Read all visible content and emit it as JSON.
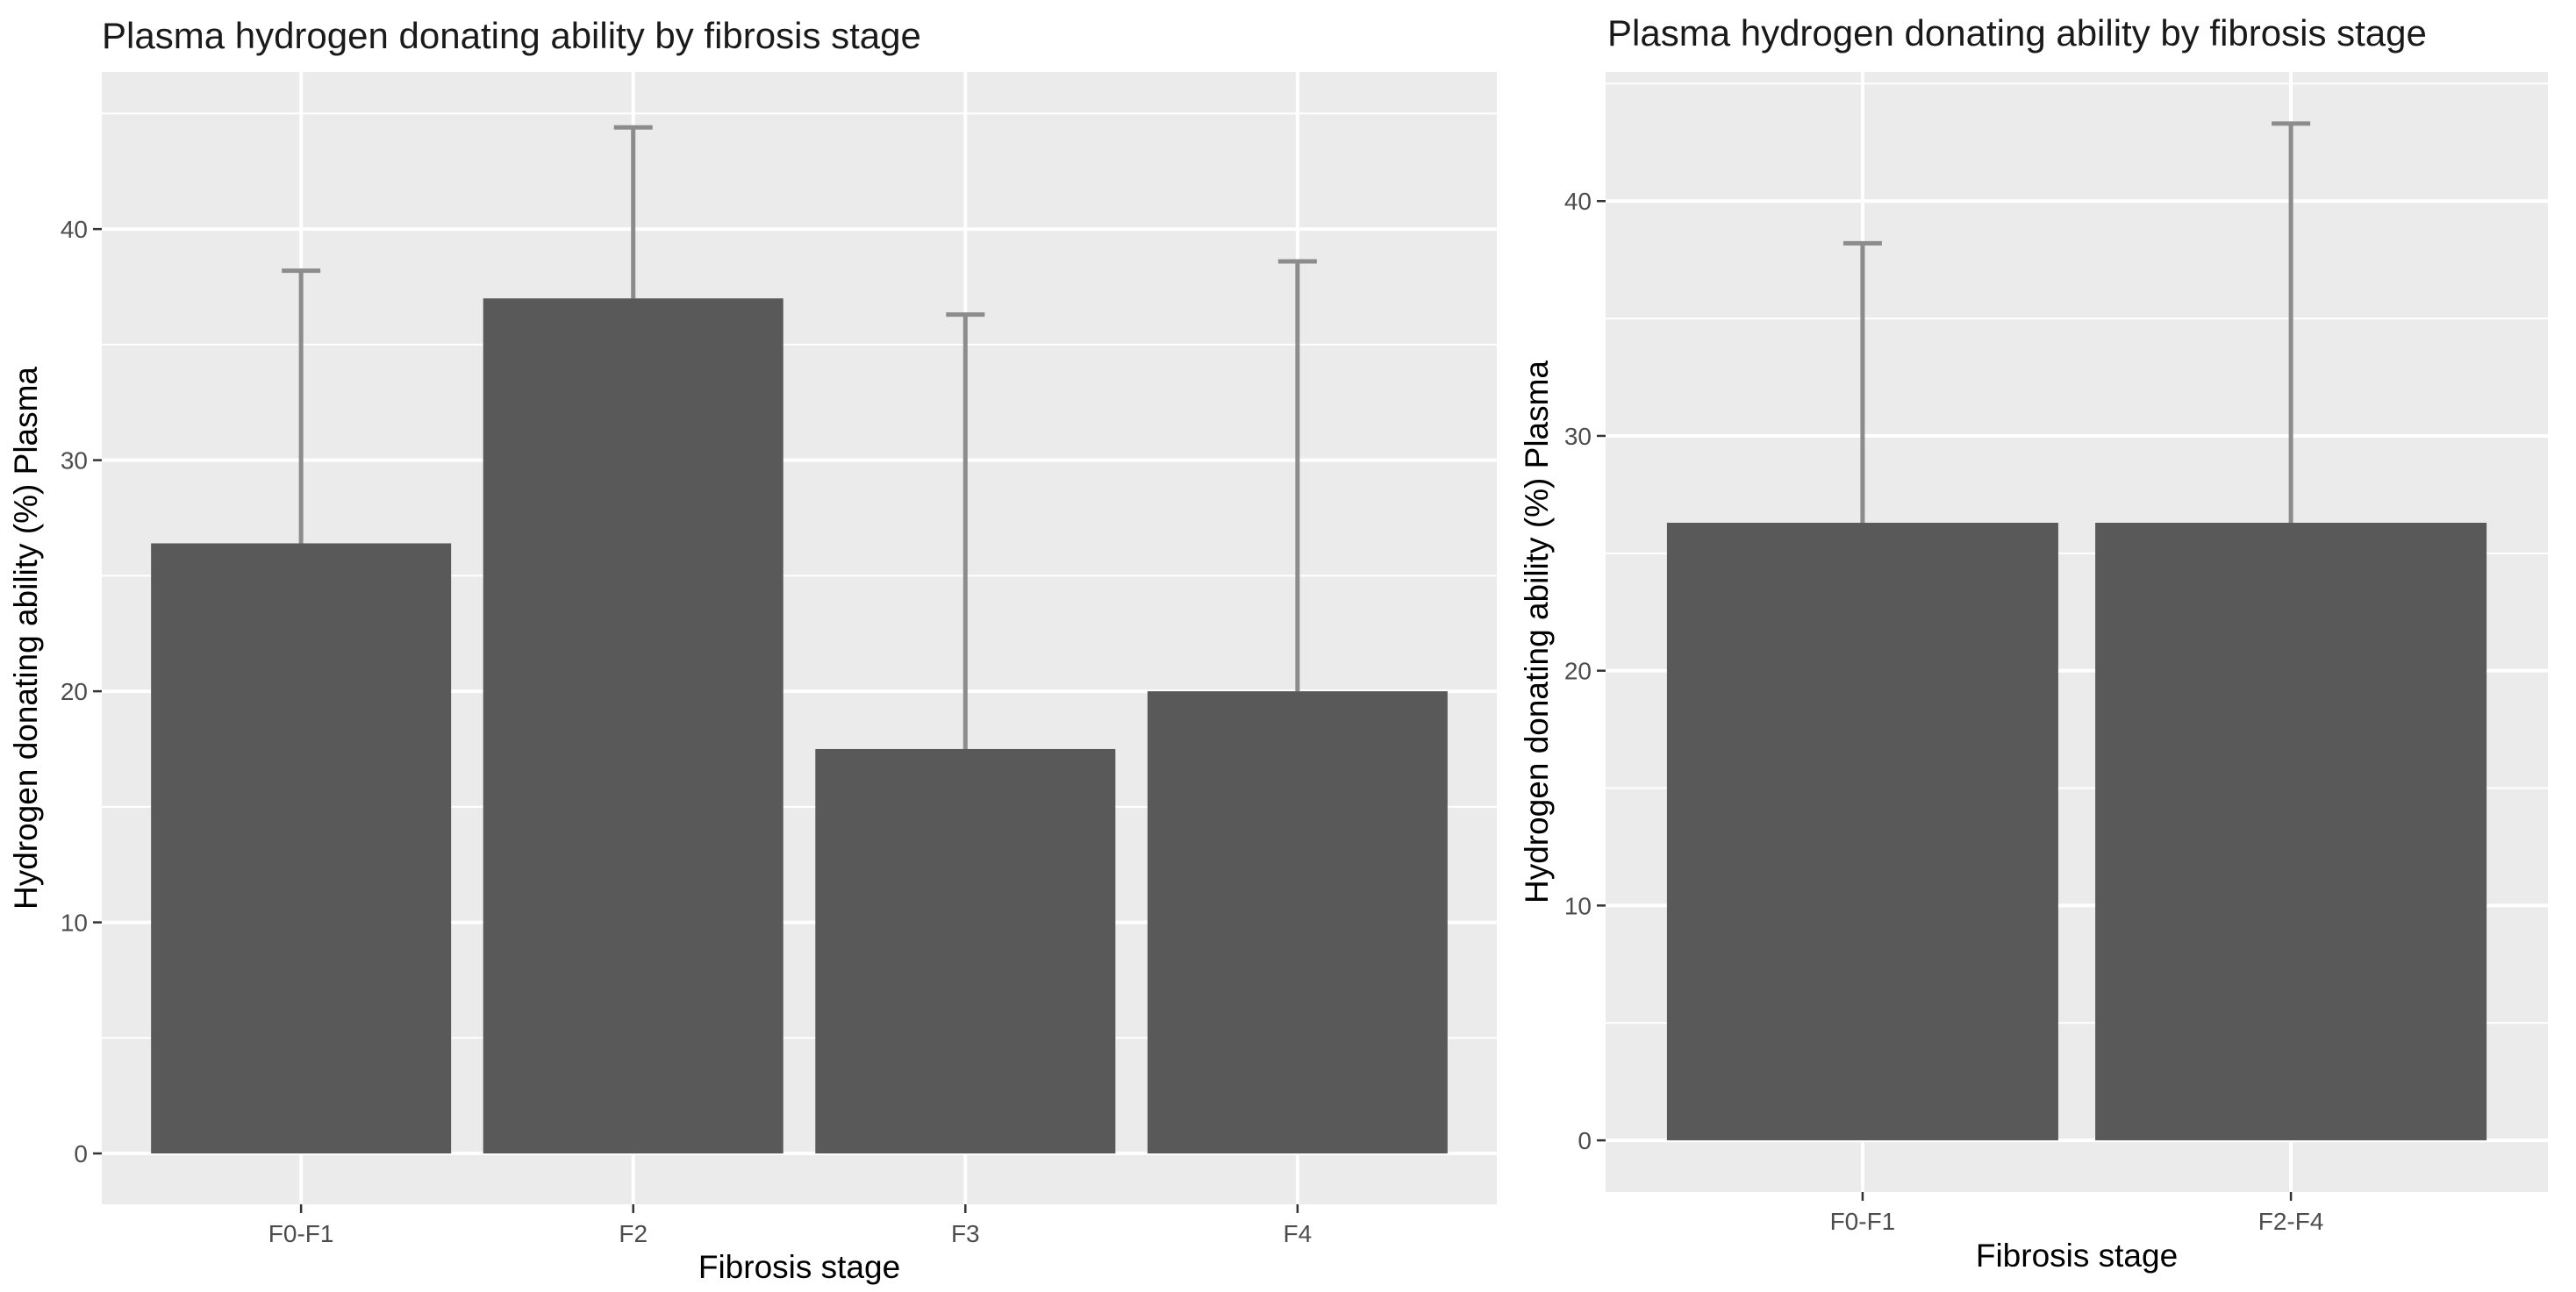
{
  "chart_data": [
    {
      "type": "bar",
      "title": "Plasma hydrogen donating ability by fibrosis stage",
      "xlabel": "Fibrosis stage",
      "ylabel": "Hydrogen donating ability (%) Plasma",
      "categories": [
        "F0-F1",
        "F2",
        "F3",
        "F4"
      ],
      "values": [
        26.4,
        37.0,
        17.5,
        20.0
      ],
      "error_upper": [
        38.2,
        44.4,
        36.3,
        38.6
      ],
      "ylim": [
        -2.2,
        46.8
      ],
      "yticks": [
        0,
        10,
        20,
        30,
        40
      ],
      "grid": true,
      "colors": {
        "bar": "#595959",
        "panel": "#ebebeb",
        "grid": "#ffffff",
        "errorbar": "#8c8c8c"
      }
    },
    {
      "type": "bar",
      "title": "Plasma hydrogen donating ability by fibrosis stage",
      "xlabel": "Fibrosis stage",
      "ylabel": "Hydrogen donating ability (%) Plasma",
      "categories": [
        "F0-F1",
        "F2-F4"
      ],
      "values": [
        26.3,
        26.3
      ],
      "error_upper": [
        38.2,
        43.3
      ],
      "ylim": [
        -2.2,
        45.5
      ],
      "yticks": [
        0,
        10,
        20,
        30,
        40
      ],
      "grid": true,
      "colors": {
        "bar": "#595959",
        "panel": "#ebebeb",
        "grid": "#ffffff",
        "errorbar": "#8c8c8c"
      }
    }
  ]
}
